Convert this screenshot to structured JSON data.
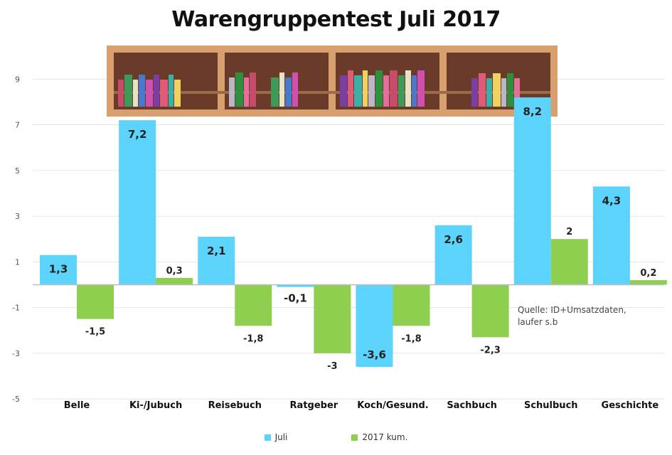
{
  "chart_data": {
    "type": "bar",
    "title": "Warengruppentest Juli 2017",
    "categories": [
      "Belle",
      "Ki-/Jubuch",
      "Reisebuch",
      "Ratgeber",
      "Koch/Gesund.",
      "Sachbuch",
      "Schulbuch",
      "Geschichte"
    ],
    "series": [
      {
        "name": "Juli",
        "color": "#5bd3fb",
        "values": [
          1.3,
          7.2,
          2.1,
          -0.1,
          -3.6,
          2.6,
          8.2,
          4.3
        ]
      },
      {
        "name": "2017 kum.",
        "color": "#8fcf4f",
        "values": [
          -1.5,
          0.3,
          -1.8,
          -3,
          -1.8,
          -2.3,
          2,
          0.2
        ]
      }
    ],
    "data_labels": [
      [
        "1,3",
        "7,2",
        "2,1",
        "-0,1",
        "-3,6",
        "2,6",
        "8,2",
        "4,3"
      ],
      [
        "-1,5",
        "0,3",
        "-1,8",
        "-3",
        "-1,8",
        "-2,3",
        "2",
        "0,2"
      ]
    ],
    "y_ticks": [
      -5,
      -3,
      -1,
      1,
      3,
      5,
      7,
      9
    ],
    "y_tick_labels": [
      "-5",
      "-3",
      "-1",
      "1",
      "3",
      "5",
      "7",
      "9"
    ],
    "ylim": [
      -5.4,
      9.6
    ],
    "grid": true,
    "legend_position": "bottom",
    "annotation": "Quelle: ID+Umsatzdaten, laufer s.b"
  }
}
